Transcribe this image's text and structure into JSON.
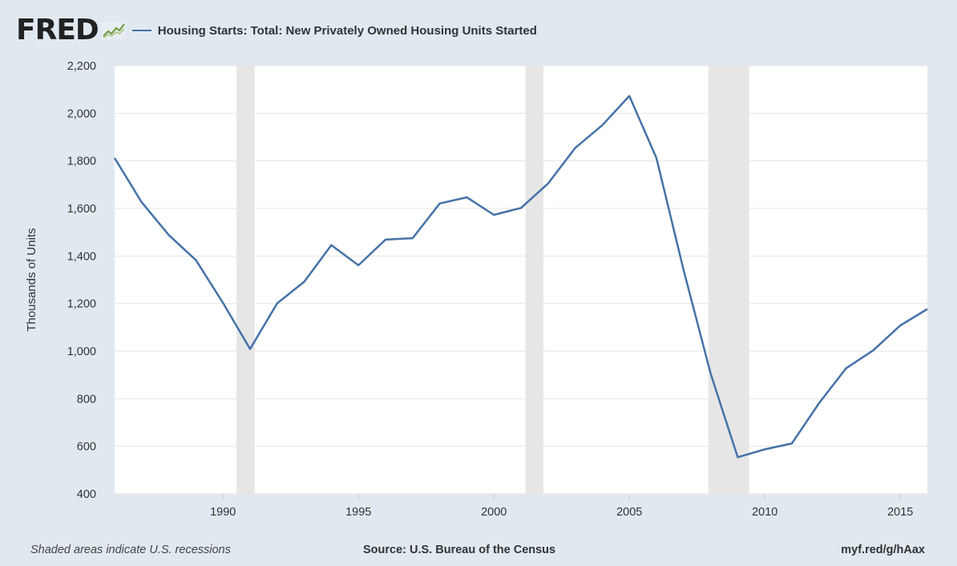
{
  "brand": {
    "logo_text": "FRED",
    "logo_icon": "trend-graph-icon"
  },
  "legend": {
    "series_label": "Housing Starts: Total: New Privately Owned Housing Units Started"
  },
  "footer": {
    "note": "Shaded areas indicate U.S. recessions",
    "source": "Source: U.S. Bureau of the Census",
    "url": "myf.red/g/hAax"
  },
  "colors": {
    "background": "#e1e9f0",
    "plot_background": "#ffffff",
    "series": "#4572a7",
    "recession_shading": "#e6e6e6",
    "grid": "#e6e6e6"
  },
  "chart_data": {
    "type": "line",
    "title": "",
    "xlabel": "",
    "ylabel": "Thousands of Units",
    "xlim": [
      1986,
      2016
    ],
    "ylim": [
      400,
      2200
    ],
    "y_ticks": [
      400,
      600,
      800,
      1000,
      1200,
      1400,
      1600,
      1800,
      2000,
      2200
    ],
    "y_tick_labels": [
      "400",
      "600",
      "800",
      "1,000",
      "1,200",
      "1,400",
      "1,600",
      "1,800",
      "2,000",
      "2,200"
    ],
    "x_ticks": [
      1990,
      1995,
      2000,
      2005,
      2010,
      2015
    ],
    "x_tick_labels": [
      "1990",
      "1995",
      "2000",
      "2005",
      "2010",
      "2015"
    ],
    "grid": "horizontal",
    "legend_position": "top-left",
    "recessions": [
      [
        1990.5,
        1991.17
      ],
      [
        2001.17,
        2001.83
      ],
      [
        2007.92,
        2009.42
      ]
    ],
    "series": [
      {
        "name": "Housing Starts: Total: New Privately Owned Housing Units Started",
        "x": [
          1986,
          1987,
          1988,
          1989,
          1990,
          1991,
          1992,
          1993,
          1994,
          1995,
          1996,
          1997,
          1998,
          1999,
          2000,
          2001,
          2002,
          2003,
          2004,
          2005,
          2006,
          2007,
          2008,
          2009,
          2010,
          2011,
          2012,
          2013,
          2014,
          2015,
          2016
        ],
        "values": [
          1812,
          1626,
          1488,
          1383,
          1203,
          1009,
          1201,
          1292,
          1446,
          1361,
          1469,
          1475,
          1621,
          1647,
          1573,
          1602,
          1705,
          1854,
          1950,
          2073,
          1812,
          1342,
          906,
          554,
          587,
          612,
          781,
          928,
          1003,
          1108,
          1177
        ]
      }
    ]
  }
}
